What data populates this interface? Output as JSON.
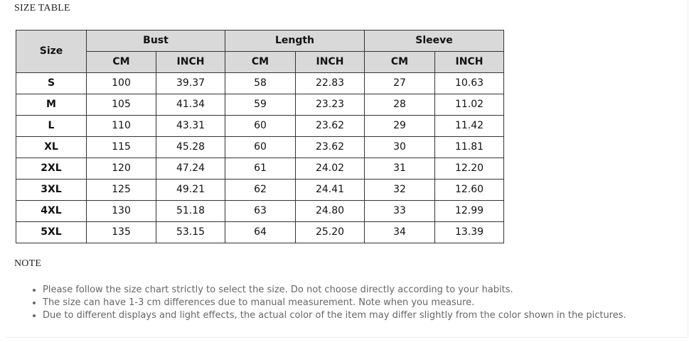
{
  "title": "SIZE TABLE",
  "table": {
    "corner_label": "Size",
    "groups": [
      "Bust",
      "Length",
      "Sleeve"
    ],
    "units": [
      "CM",
      "INCH",
      "CM",
      "INCH",
      "CM",
      "INCH"
    ],
    "rows": [
      {
        "size": "S",
        "values": [
          "100",
          "39.37",
          "58",
          "22.83",
          "27",
          "10.63"
        ]
      },
      {
        "size": "M",
        "values": [
          "105",
          "41.34",
          "59",
          "23.23",
          "28",
          "11.02"
        ]
      },
      {
        "size": "L",
        "values": [
          "110",
          "43.31",
          "60",
          "23.62",
          "29",
          "11.42"
        ]
      },
      {
        "size": "XL",
        "values": [
          "115",
          "45.28",
          "60",
          "23.62",
          "30",
          "11.81"
        ]
      },
      {
        "size": "2XL",
        "values": [
          "120",
          "47.24",
          "61",
          "24.02",
          "31",
          "12.20"
        ]
      },
      {
        "size": "3XL",
        "values": [
          "125",
          "49.21",
          "62",
          "24.41",
          "32",
          "12.60"
        ]
      },
      {
        "size": "4XL",
        "values": [
          "130",
          "51.18",
          "63",
          "24.80",
          "33",
          "12.99"
        ]
      },
      {
        "size": "5XL",
        "values": [
          "135",
          "53.15",
          "64",
          "25.20",
          "34",
          "13.39"
        ]
      }
    ]
  },
  "note": {
    "title": "NOTE",
    "items": [
      "Please follow the size chart strictly to select the size. Do not choose directly according to your habits.",
      "The size can have 1-3 cm differences due to manual measurement. Note when you measure.",
      "Due to different displays and light effects, the actual color of the item may differ slightly from the color shown in the pictures."
    ]
  }
}
